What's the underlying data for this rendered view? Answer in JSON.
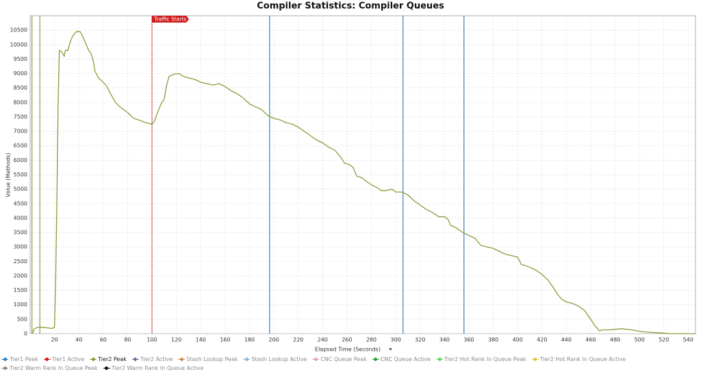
{
  "chart_data": {
    "type": "line",
    "title": "Compiler Statistics: Compiler Queues",
    "x_label": "Elapsed Time (Seconds)",
    "y_label": "Value (Methods)",
    "xlim": [
      0,
      546
    ],
    "ylim": [
      0,
      11000
    ],
    "xticks": [
      20,
      40,
      60,
      80,
      100,
      120,
      140,
      160,
      180,
      200,
      220,
      240,
      260,
      280,
      300,
      320,
      340,
      360,
      380,
      400,
      420,
      440,
      460,
      480,
      500,
      520,
      540
    ],
    "yticks": [
      0,
      500,
      1000,
      1500,
      2000,
      2500,
      3000,
      3500,
      4000,
      4500,
      5000,
      5500,
      6000,
      6500,
      7000,
      7500,
      8000,
      8500,
      9000,
      9500,
      10000,
      10500
    ],
    "grid": true,
    "series": [
      {
        "name": "Tier2 Peak",
        "color": "#8a9a3a",
        "x": [
          2,
          3,
          5,
          8,
          10,
          14,
          18,
          20,
          21,
          22,
          23,
          24,
          26,
          28,
          29,
          31,
          33,
          35,
          38,
          41,
          43,
          46,
          48,
          50,
          52,
          53,
          56,
          60,
          63,
          66,
          70,
          75,
          80,
          85,
          90,
          95,
          100,
          102,
          105,
          108,
          110,
          112,
          114,
          118,
          122,
          126,
          130,
          135,
          140,
          145,
          150,
          155,
          160,
          165,
          170,
          175,
          180,
          185,
          190,
          195,
          200,
          205,
          210,
          215,
          220,
          225,
          230,
          235,
          240,
          245,
          250,
          255,
          258,
          262,
          265,
          268,
          272,
          275,
          280,
          285,
          288,
          292,
          297,
          300,
          305,
          310,
          315,
          320,
          325,
          330,
          335,
          340,
          343,
          345,
          350,
          355,
          360,
          365,
          370,
          375,
          380,
          385,
          390,
          395,
          400,
          403,
          410,
          415,
          420,
          425,
          430,
          433,
          436,
          440,
          445,
          450,
          455,
          460,
          463,
          467,
          470,
          475,
          480,
          485,
          490,
          495,
          500,
          505,
          510,
          515,
          520,
          525,
          530,
          540,
          546
        ],
        "values": [
          0,
          150,
          200,
          230,
          220,
          200,
          180,
          220,
          1950,
          4800,
          8000,
          9800,
          9750,
          9600,
          9800,
          9800,
          10100,
          10300,
          10450,
          10450,
          10300,
          10000,
          9800,
          9700,
          9400,
          9100,
          8850,
          8700,
          8550,
          8300,
          8000,
          7800,
          7650,
          7450,
          7380,
          7300,
          7250,
          7350,
          7700,
          8000,
          8100,
          8600,
          8900,
          8980,
          9000,
          8900,
          8850,
          8800,
          8700,
          8650,
          8600,
          8650,
          8550,
          8400,
          8300,
          8150,
          7950,
          7850,
          7750,
          7550,
          7450,
          7400,
          7300,
          7250,
          7150,
          7000,
          6850,
          6700,
          6600,
          6450,
          6350,
          6100,
          5900,
          5850,
          5750,
          5450,
          5400,
          5300,
          5150,
          5050,
          4950,
          4950,
          5000,
          4900,
          4900,
          4800,
          4600,
          4450,
          4300,
          4200,
          4050,
          4050,
          3950,
          3750,
          3650,
          3500,
          3400,
          3300,
          3050,
          3000,
          2950,
          2850,
          2750,
          2700,
          2650,
          2400,
          2300,
          2200,
          2050,
          1850,
          1550,
          1350,
          1200,
          1100,
          1050,
          950,
          800,
          500,
          300,
          100,
          130,
          130,
          150,
          170,
          150,
          120,
          80,
          60,
          40,
          30,
          20,
          0,
          0,
          0,
          0
        ]
      }
    ],
    "markers": [
      {
        "x": 1.5,
        "color": "#8a9a3a"
      },
      {
        "x": 8,
        "color": "#8a9a3a"
      },
      {
        "x": 100,
        "color": "#d01818",
        "label": "Traffic Starts"
      },
      {
        "x": 196.5,
        "color": "#2f7dbf"
      },
      {
        "x": 306,
        "color": "#2f7dbf"
      },
      {
        "x": 356,
        "color": "#2f7dbf"
      }
    ],
    "legend": [
      {
        "name": "Tier1 Peak",
        "color": "#2f7dbf"
      },
      {
        "name": "Tier1 Active",
        "color": "#d01818"
      },
      {
        "name": "Tier2 Peak",
        "color": "#8a9a3a"
      },
      {
        "name": "Tier2 Active",
        "color": "#66708a"
      },
      {
        "name": "Stash Lookup Peak",
        "color": "#d08a3c"
      },
      {
        "name": "Stash Lookup Active",
        "color": "#8ab4d8"
      },
      {
        "name": "CNC Queue Peak",
        "color": "#e9a0a8"
      },
      {
        "name": "CNC Queue Active",
        "color": "#2ca02c"
      },
      {
        "name": "Tier2 Hot Rank In Queue Peak",
        "color": "#5bd55b"
      },
      {
        "name": "Tier2 Hot Rank In Queue Active",
        "color": "#e8c43c"
      },
      {
        "name": "Tier2 Warm Rank In Queue Peak",
        "color": "#888888"
      },
      {
        "name": "Tier2 Warm Rank In Queue Active",
        "color": "#111111"
      }
    ]
  }
}
